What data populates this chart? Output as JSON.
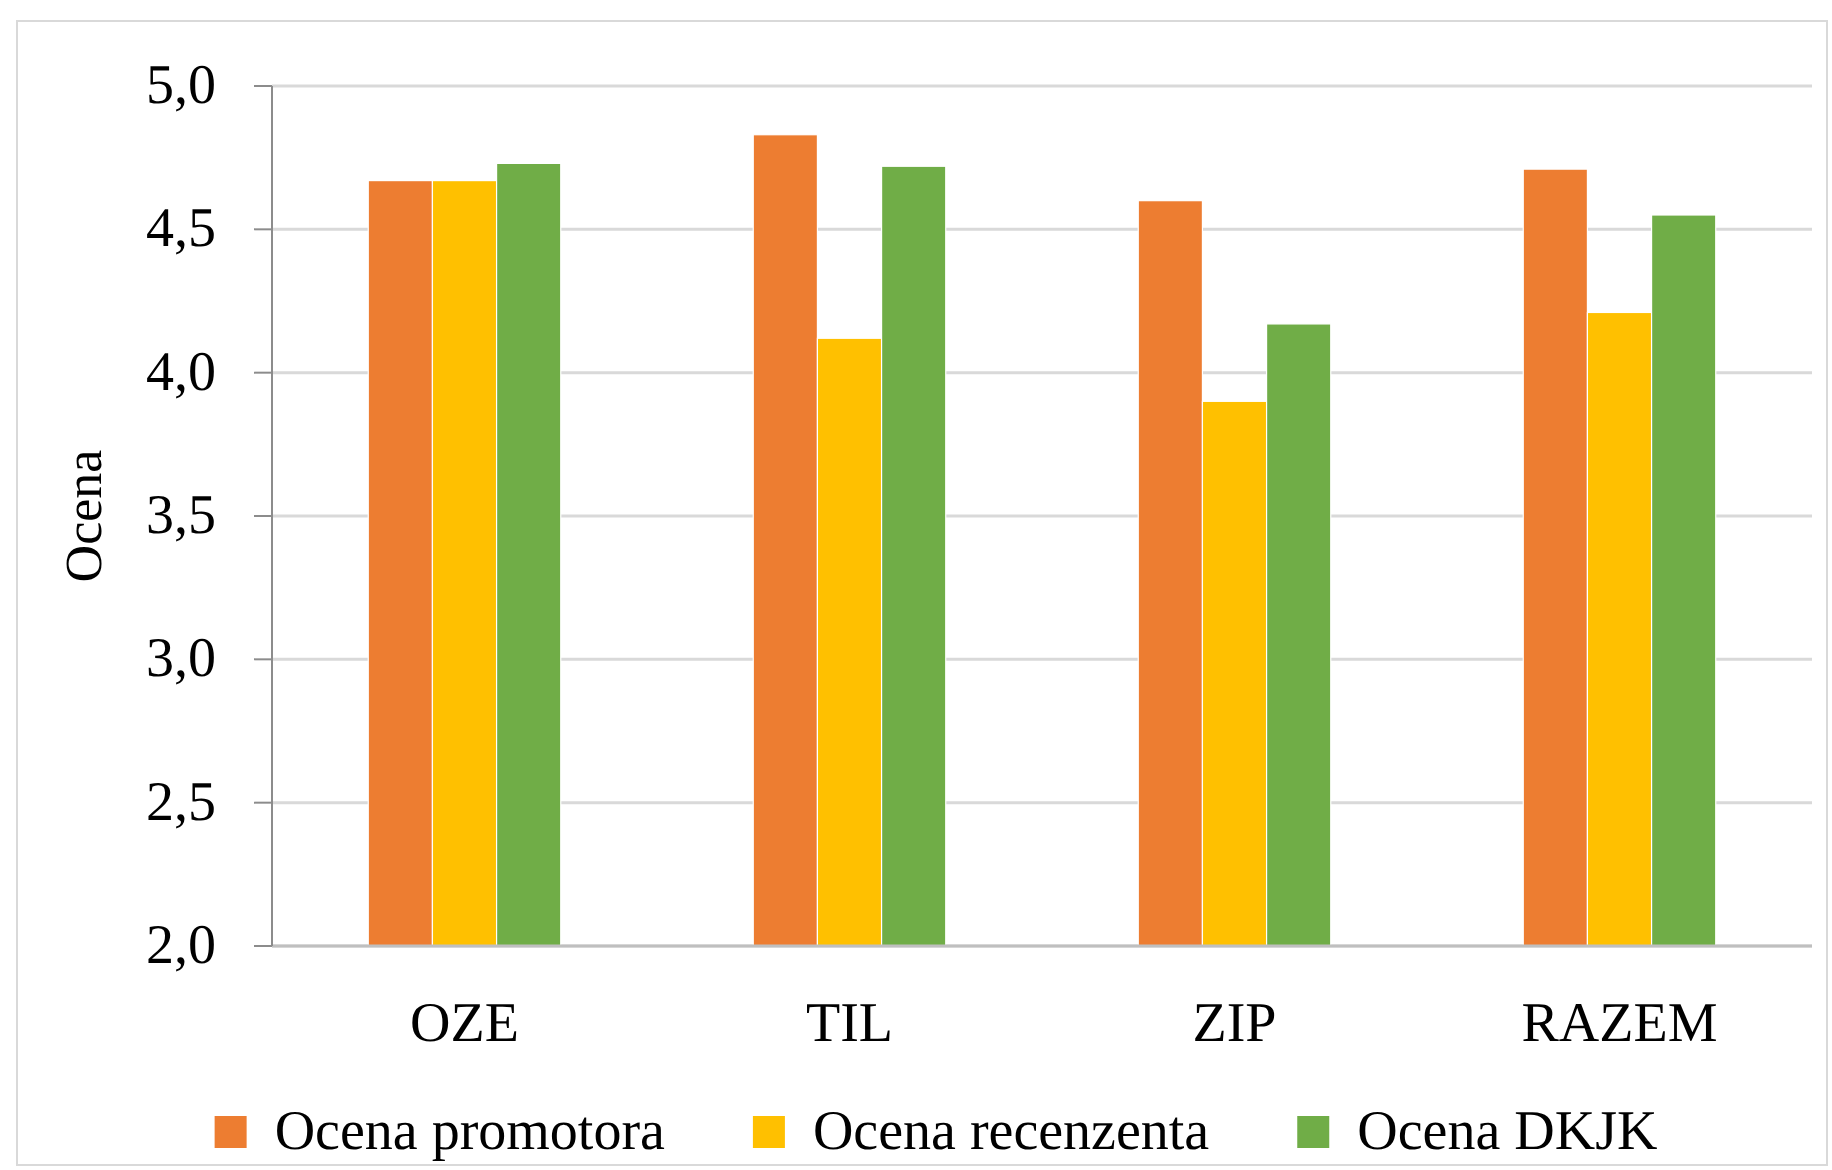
{
  "chart_data": {
    "type": "bar",
    "ylabel": "Ocena",
    "categories": [
      "OZE",
      "TIL",
      "ZIP",
      "RAZEM"
    ],
    "series": [
      {
        "name": "Ocena promotora",
        "color": "#ed7d31",
        "values": [
          4.67,
          4.83,
          4.6,
          4.71
        ]
      },
      {
        "name": "Ocena recenzenta",
        "color": "#ffc000",
        "values": [
          4.67,
          4.12,
          3.9,
          4.21
        ]
      },
      {
        "name": "Ocena DKJK",
        "color": "#70ad47",
        "values": [
          4.73,
          4.72,
          4.17,
          4.55
        ]
      }
    ],
    "ylim": [
      2,
      5
    ],
    "yticks": [
      {
        "value": 2,
        "label": "2,0"
      },
      {
        "value": 2.5,
        "label": "2,5"
      },
      {
        "value": 3,
        "label": "3,0"
      },
      {
        "value": 3.5,
        "label": "3,5"
      },
      {
        "value": 4,
        "label": "4,0"
      },
      {
        "value": 4.5,
        "label": "4,5"
      },
      {
        "value": 5,
        "label": "5,0"
      }
    ],
    "grid": "y",
    "legend": "bottom"
  }
}
